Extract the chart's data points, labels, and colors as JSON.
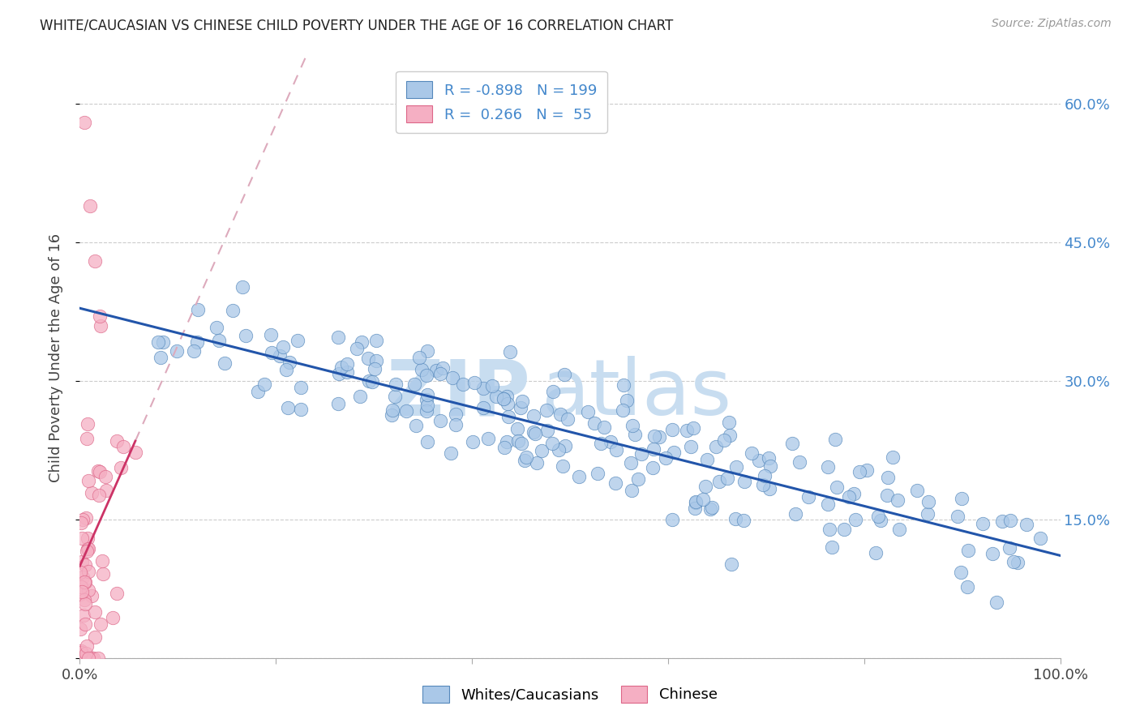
{
  "title": "WHITE/CAUCASIAN VS CHINESE CHILD POVERTY UNDER THE AGE OF 16 CORRELATION CHART",
  "source": "Source: ZipAtlas.com",
  "ylabel": "Child Poverty Under the Age of 16",
  "xmin": 0.0,
  "xmax": 1.0,
  "ymin": 0.0,
  "ymax": 0.65,
  "yticks": [
    0.0,
    0.15,
    0.3,
    0.45,
    0.6
  ],
  "ytick_labels": [
    "",
    "15.0%",
    "30.0%",
    "45.0%",
    "60.0%"
  ],
  "blue_R": -0.898,
  "blue_N": 199,
  "pink_R": 0.266,
  "pink_N": 55,
  "blue_color": "#aac8e8",
  "pink_color": "#f5afc3",
  "blue_edge": "#5588bb",
  "pink_edge": "#dd6688",
  "blue_line_color": "#2255aa",
  "pink_line_color": "#cc3366",
  "pink_dash_color": "#ddaabc",
  "watermark_zip": "ZIP",
  "watermark_atlas": "atlas",
  "watermark_color_zip": "#c8ddf0",
  "watermark_color_atlas": "#c8ddf0",
  "title_fontsize": 12,
  "legend_label_blue": "Whites/Caucasians",
  "legend_label_pink": "Chinese",
  "legend_text_color": "#4488cc",
  "background_color": "#ffffff",
  "grid_color": "#cccccc",
  "right_tick_color": "#4488cc"
}
